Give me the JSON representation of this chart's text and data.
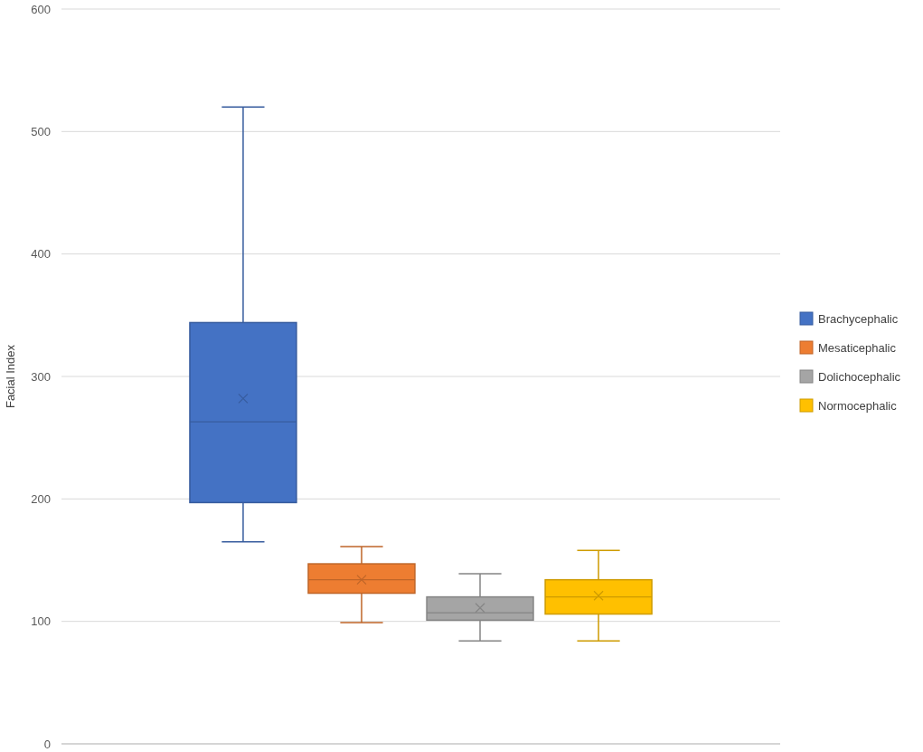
{
  "chart_data": {
    "type": "box",
    "ylabel": "Facial Index",
    "categories": [
      null
    ],
    "ylim": [
      0,
      600
    ],
    "yticks": [
      0,
      100,
      200,
      300,
      400,
      500,
      600
    ],
    "grid": "y",
    "legend": "right",
    "marker": "cross",
    "series": [
      {
        "name": "Brachycephalic",
        "color": "#4472c4",
        "boxes": [
          {
            "low": 165,
            "q1": 197,
            "median": 263,
            "q3": 344,
            "high": 520,
            "mean": 282
          }
        ]
      },
      {
        "name": "Mesaticephalic",
        "color": "#ed7d31",
        "boxes": [
          {
            "low": 99,
            "q1": 123,
            "median": 134,
            "q3": 147,
            "high": 161,
            "mean": 134
          }
        ]
      },
      {
        "name": "Dolichocephalic",
        "color": "#a5a5a5",
        "boxes": [
          {
            "low": 84,
            "q1": 101,
            "median": 107,
            "q3": 120,
            "high": 139,
            "mean": 111
          }
        ]
      },
      {
        "name": "Normocephalic",
        "color": "#ffc000",
        "boxes": [
          {
            "low": 84,
            "q1": 106,
            "median": 120,
            "q3": 134,
            "high": 158,
            "mean": 121
          }
        ]
      }
    ]
  }
}
